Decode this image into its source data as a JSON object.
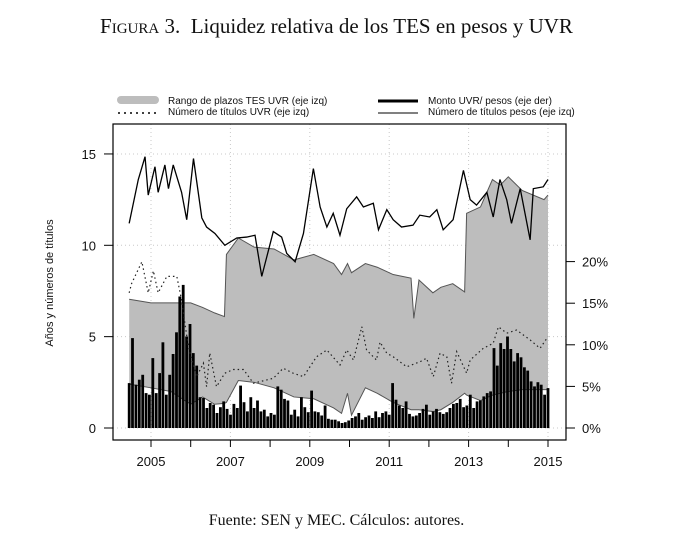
{
  "figure": {
    "label": "Figura 3.",
    "title": "Liquidez relativa de los TES en pesos y UVR",
    "caption": "Fuente: SEN y MEC. Cálculos: autores."
  },
  "chart_data": {
    "type": "line",
    "ylabel_left": "Años y números de títulos",
    "xlim": [
      2004.0,
      2015.3
    ],
    "ylim_left": [
      0,
      16.5
    ],
    "ylim_right_pct": [
      0,
      0.36
    ],
    "x_ticks": [
      "2005",
      "2007",
      "2009",
      "2011",
      "2013",
      "2015"
    ],
    "x_tick_values": [
      2005,
      2007,
      2009,
      2011,
      2013,
      2015
    ],
    "y_ticks_left": [
      "0",
      "5",
      "10",
      "15"
    ],
    "y_tick_values_left": [
      0,
      5,
      10,
      15
    ],
    "y_ticks_right": [
      "0%",
      "5%",
      "10%",
      "15%",
      "20%"
    ],
    "y_tick_values_right": [
      0,
      5,
      10,
      15,
      20
    ],
    "grid": true,
    "legend_position": "top",
    "legend": [
      "Rango de plazos TES UVR (eje izq)",
      "Número de títulos UVR (eje izq)",
      "Monto UVR/ pesos (eje der)",
      "Número de títulos pesos (eje izq)"
    ],
    "colors": {
      "band": "#bdbdbd",
      "band_edge": "#555555",
      "line": "#000000",
      "grid": "#c8c8c8"
    },
    "band_rango_plazos_uvr": [
      [
        2004.45,
        2.4,
        7.05
      ],
      [
        2005.0,
        2.2,
        6.85
      ],
      [
        2005.5,
        2.0,
        6.85
      ],
      [
        2006.0,
        1.3,
        6.85
      ],
      [
        2006.3,
        1.7,
        6.6
      ],
      [
        2006.6,
        1.3,
        6.3
      ],
      [
        2006.85,
        1.35,
        6.1
      ],
      [
        2006.9,
        1.4,
        9.5
      ],
      [
        2007.2,
        2.6,
        10.4
      ],
      [
        2007.6,
        2.5,
        9.9
      ],
      [
        2008.1,
        2.2,
        9.8
      ],
      [
        2008.6,
        1.7,
        9.2
      ],
      [
        2009.1,
        1.6,
        9.5
      ],
      [
        2009.6,
        1.1,
        9.0
      ],
      [
        2009.8,
        0.8,
        8.4
      ],
      [
        2009.95,
        1.9,
        9.0
      ],
      [
        2010.05,
        0.7,
        8.5
      ],
      [
        2010.4,
        2.2,
        9.0
      ],
      [
        2010.7,
        1.9,
        8.8
      ],
      [
        2011.1,
        1.4,
        8.4
      ],
      [
        2011.55,
        1.0,
        8.2
      ],
      [
        2011.62,
        1.0,
        6.0
      ],
      [
        2011.75,
        1.0,
        8.1
      ],
      [
        2012.1,
        0.9,
        7.4
      ],
      [
        2012.3,
        1.0,
        7.7
      ],
      [
        2012.6,
        1.4,
        7.9
      ],
      [
        2012.9,
        1.9,
        7.45
      ],
      [
        2012.95,
        1.8,
        11.75
      ],
      [
        2013.3,
        1.5,
        12.1
      ],
      [
        2013.6,
        1.8,
        13.6
      ],
      [
        2013.8,
        1.9,
        13.3
      ],
      [
        2014.0,
        2.0,
        13.75
      ],
      [
        2014.35,
        2.1,
        13.0
      ],
      [
        2014.9,
        2.1,
        12.5
      ],
      [
        2015.0,
        2.1,
        12.75
      ]
    ],
    "titulos_uvr": [
      [
        2004.45,
        7.4
      ],
      [
        2004.51,
        7.9
      ],
      [
        2004.77,
        9.1
      ],
      [
        2004.93,
        7.4
      ],
      [
        2005.06,
        8.6
      ],
      [
        2005.18,
        7.4
      ],
      [
        2005.4,
        8.3
      ],
      [
        2005.65,
        8.3
      ],
      [
        2005.77,
        7.0
      ],
      [
        2005.94,
        4.45
      ],
      [
        2006.15,
        2.8
      ],
      [
        2006.32,
        3.55
      ],
      [
        2006.4,
        2.26
      ],
      [
        2006.48,
        4.1
      ],
      [
        2006.65,
        2.26
      ],
      [
        2006.86,
        3.0
      ],
      [
        2007.07,
        3.2
      ],
      [
        2007.33,
        3.2
      ],
      [
        2007.58,
        2.45
      ],
      [
        2008.08,
        2.72
      ],
      [
        2008.33,
        3.27
      ],
      [
        2008.58,
        3.0
      ],
      [
        2008.84,
        2.81
      ],
      [
        2009.17,
        3.9
      ],
      [
        2009.43,
        4.27
      ],
      [
        2009.76,
        3.45
      ],
      [
        2009.93,
        4.27
      ],
      [
        2010.1,
        3.72
      ],
      [
        2010.31,
        5.54
      ],
      [
        2010.43,
        4.27
      ],
      [
        2010.68,
        3.72
      ],
      [
        2010.77,
        4.7
      ],
      [
        2010.94,
        4.09
      ],
      [
        2011.1,
        3.9
      ],
      [
        2011.44,
        3.35
      ],
      [
        2011.78,
        3.63
      ],
      [
        2011.94,
        3.82
      ],
      [
        2012.11,
        2.81
      ],
      [
        2012.28,
        4.09
      ],
      [
        2012.45,
        3.9
      ],
      [
        2012.57,
        2.45
      ],
      [
        2012.7,
        4.18
      ],
      [
        2012.95,
        3.0
      ],
      [
        2013.04,
        3.72
      ],
      [
        2013.37,
        4.36
      ],
      [
        2013.62,
        4.64
      ],
      [
        2013.75,
        5.54
      ],
      [
        2013.96,
        5.19
      ],
      [
        2014.21,
        5.36
      ],
      [
        2014.55,
        4.82
      ],
      [
        2014.8,
        4.36
      ],
      [
        2015.0,
        5.0
      ]
    ],
    "titulos_pesos": [
      [
        2004.45,
        11.2
      ],
      [
        2004.68,
        13.6
      ],
      [
        2004.85,
        14.85
      ],
      [
        2004.93,
        12.75
      ],
      [
        2005.1,
        14.3
      ],
      [
        2005.18,
        12.9
      ],
      [
        2005.35,
        14.4
      ],
      [
        2005.44,
        13.1
      ],
      [
        2005.56,
        14.4
      ],
      [
        2005.77,
        12.9
      ],
      [
        2005.9,
        11.4
      ],
      [
        2006.07,
        14.75
      ],
      [
        2006.28,
        11.5
      ],
      [
        2006.4,
        11.0
      ],
      [
        2006.61,
        10.65
      ],
      [
        2006.86,
        10.0
      ],
      [
        2007.16,
        10.4
      ],
      [
        2007.41,
        10.45
      ],
      [
        2007.62,
        10.55
      ],
      [
        2007.79,
        8.3
      ],
      [
        2008.08,
        10.75
      ],
      [
        2008.29,
        10.45
      ],
      [
        2008.42,
        9.55
      ],
      [
        2008.63,
        9.1
      ],
      [
        2008.84,
        10.65
      ],
      [
        2009.09,
        14.2
      ],
      [
        2009.26,
        12.1
      ],
      [
        2009.43,
        11.0
      ],
      [
        2009.59,
        11.75
      ],
      [
        2009.76,
        10.55
      ],
      [
        2009.93,
        12.0
      ],
      [
        2010.18,
        12.65
      ],
      [
        2010.35,
        12.1
      ],
      [
        2010.6,
        12.3
      ],
      [
        2010.73,
        10.85
      ],
      [
        2010.94,
        11.95
      ],
      [
        2011.1,
        11.4
      ],
      [
        2011.31,
        11.0
      ],
      [
        2011.6,
        11.1
      ],
      [
        2011.77,
        11.65
      ],
      [
        2012.02,
        11.55
      ],
      [
        2012.2,
        11.95
      ],
      [
        2012.36,
        10.85
      ],
      [
        2012.61,
        11.4
      ],
      [
        2012.87,
        14.1
      ],
      [
        2013.04,
        12.5
      ],
      [
        2013.2,
        12.2
      ],
      [
        2013.46,
        12.9
      ],
      [
        2013.62,
        11.55
      ],
      [
        2013.79,
        13.6
      ],
      [
        2013.96,
        12.5
      ],
      [
        2014.08,
        11.2
      ],
      [
        2014.3,
        13.1
      ],
      [
        2014.55,
        10.3
      ],
      [
        2014.63,
        13.1
      ],
      [
        2014.88,
        13.2
      ],
      [
        2015.0,
        13.6
      ]
    ],
    "monto_uvr_pesos_pct": {
      "start": 2004.45,
      "end": 2015.0,
      "values": [
        5.4,
        10.8,
        5.2,
        5.8,
        6.4,
        4.2,
        4.0,
        8.4,
        4.2,
        6.6,
        10.3,
        4.0,
        6.4,
        8.9,
        11.5,
        15.8,
        17.2,
        11.0,
        12.5,
        9.0,
        7.5,
        3.7,
        3.6,
        2.4,
        3.0,
        2.8,
        1.8,
        2.5,
        3.2,
        2.3,
        1.6,
        2.9,
        2.4,
        5.1,
        3.1,
        2.0,
        3.7,
        2.4,
        3.3,
        2.0,
        2.2,
        1.4,
        1.8,
        1.6,
        5.0,
        4.6,
        3.5,
        3.3,
        1.6,
        2.2,
        1.4,
        3.7,
        2.5,
        1.9,
        4.5,
        2.0,
        1.9,
        1.5,
        2.7,
        1.1,
        1.0,
        1.0,
        0.8,
        0.6,
        0.7,
        0.9,
        1.2,
        1.4,
        1.8,
        1.0,
        1.3,
        1.5,
        1.2,
        2.0,
        1.3,
        1.8,
        2.0,
        1.6,
        5.4,
        3.4,
        2.7,
        2.4,
        3.2,
        1.7,
        1.4,
        1.5,
        1.8,
        2.3,
        2.8,
        1.6,
        2.0,
        2.3,
        1.9,
        1.7,
        1.9,
        2.4,
        2.9,
        3.0,
        3.5,
        2.5,
        2.7,
        4.0,
        2.4,
        3.2,
        3.3,
        3.8,
        4.2,
        4.4,
        9.6,
        7.5,
        10.2,
        9.5,
        11.0,
        9.5,
        8.0,
        9.0,
        8.5,
        7.3,
        6.9,
        5.6,
        5.0,
        5.5,
        5.2,
        4.0,
        4.8
      ]
    }
  }
}
